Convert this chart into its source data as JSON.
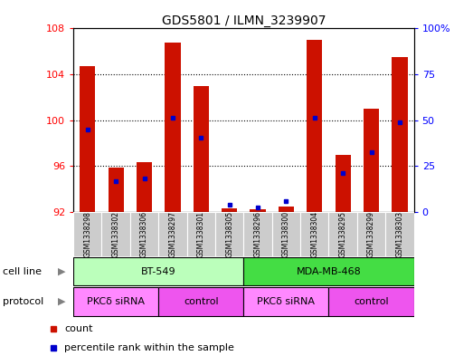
{
  "title": "GDS5801 / ILMN_3239907",
  "samples": [
    "GSM1338298",
    "GSM1338302",
    "GSM1338306",
    "GSM1338297",
    "GSM1338301",
    "GSM1338305",
    "GSM1338296",
    "GSM1338300",
    "GSM1338304",
    "GSM1338295",
    "GSM1338299",
    "GSM1338303"
  ],
  "red_values": [
    104.7,
    95.9,
    96.3,
    106.8,
    103.0,
    92.3,
    92.2,
    92.5,
    107.0,
    97.0,
    101.0,
    105.5
  ],
  "blue_values": [
    99.2,
    94.7,
    94.9,
    100.2,
    98.5,
    92.6,
    92.4,
    92.9,
    100.2,
    95.4,
    97.2,
    99.8
  ],
  "ymin": 92,
  "ymax": 108,
  "yticks_left": [
    92,
    96,
    100,
    104,
    108
  ],
  "yticks_right": [
    0,
    25,
    50,
    75,
    100
  ],
  "bar_color": "#CC1100",
  "dot_color": "#0000CC",
  "cell_line_bt549_color": "#BBFFBB",
  "cell_line_mda_color": "#44DD44",
  "protocol_pkcsiRNA_color": "#FF88FF",
  "protocol_control_color": "#EE55EE",
  "sample_box_color": "#CCCCCC",
  "label_fontsize": 8,
  "title_fontsize": 10,
  "tick_fontsize": 8,
  "sample_fontsize": 5.5,
  "legend_count": "count",
  "legend_pct": "percentile rank within the sample",
  "label_row1": "cell line",
  "label_row2": "protocol"
}
